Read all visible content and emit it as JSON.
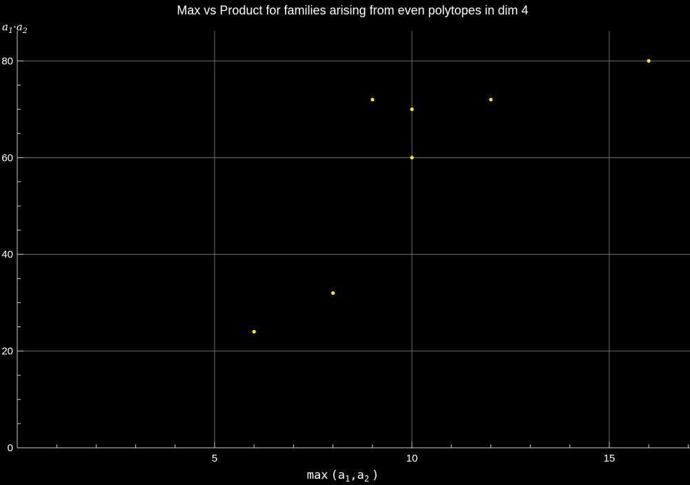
{
  "chart_data": {
    "type": "scatter",
    "title": "Max vs Product for families arising from even polytopes in dim 4",
    "xlabel": {
      "base": "max",
      "arg1": "a",
      "sub1": "1",
      "sep": ",",
      "arg2": "a",
      "sub2": "2"
    },
    "ylabel": {
      "v1": "a",
      "s1": "1",
      "dot": "·",
      "v2": "a",
      "s2": "2"
    },
    "xlim": [
      0,
      17
    ],
    "ylim": [
      0,
      80
    ],
    "x_ticks": [
      5,
      10,
      15
    ],
    "y_ticks": [
      0,
      20,
      40,
      60,
      80
    ],
    "grid": true,
    "colors": {
      "points": "#ffeb00",
      "background": "#000000",
      "text": "#ffffff"
    },
    "points": [
      {
        "x": 6,
        "y": 24
      },
      {
        "x": 8,
        "y": 32
      },
      {
        "x": 9,
        "y": 72
      },
      {
        "x": 10,
        "y": 70
      },
      {
        "x": 10,
        "y": 60
      },
      {
        "x": 12,
        "y": 72
      },
      {
        "x": 16,
        "y": 80
      }
    ]
  }
}
